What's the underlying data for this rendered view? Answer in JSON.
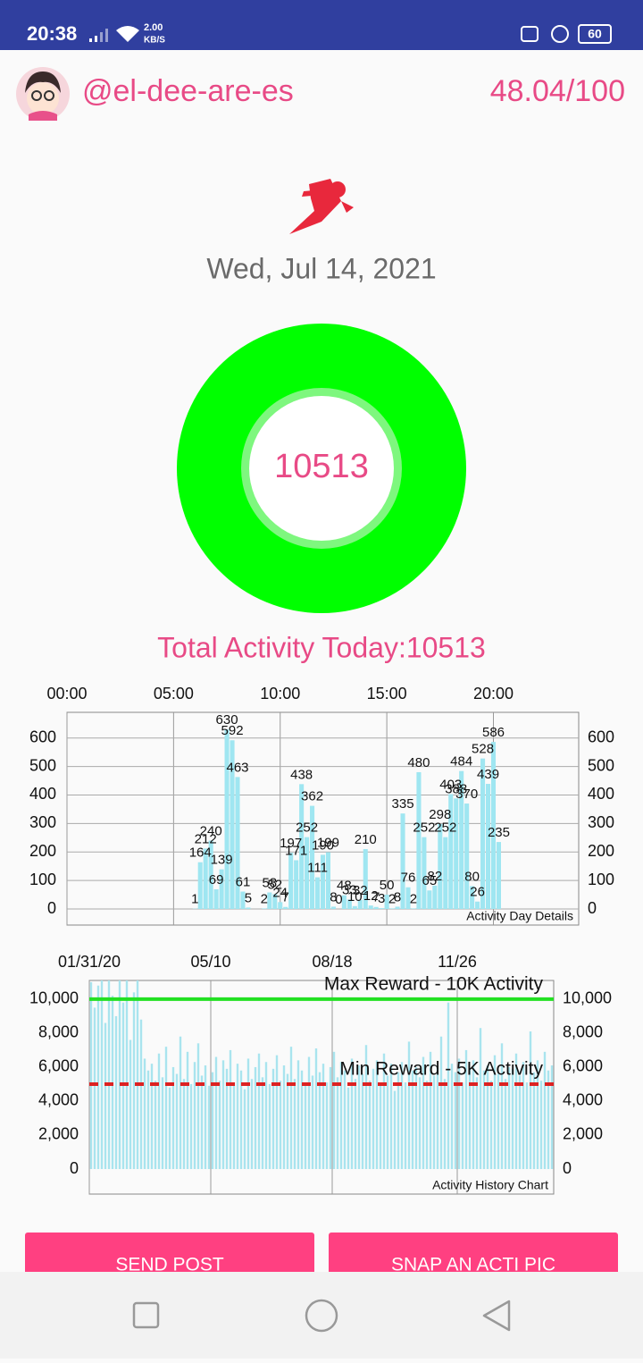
{
  "status_bar": {
    "time": "20:38",
    "speed": "2.00",
    "speed_unit": "KB/S",
    "battery": "60"
  },
  "header": {
    "username": "@el-dee-are-es",
    "score": "48.04/100"
  },
  "date": "Wed, Jul 14, 2021",
  "ring": {
    "value": "10513"
  },
  "total_text": "Total Activity Today:10513",
  "chart_data": [
    {
      "type": "bar",
      "description": "Activity Day Details",
      "color": "#9fe6f1",
      "grid": true,
      "x": [
        6.0,
        6.25,
        6.5,
        6.75,
        7.0,
        7.25,
        7.5,
        7.75,
        8.0,
        8.25,
        8.5,
        9.25,
        9.5,
        9.75,
        10.0,
        10.25,
        10.5,
        10.75,
        11.0,
        11.25,
        11.5,
        11.75,
        12.0,
        12.25,
        12.5,
        12.75,
        13.0,
        13.25,
        13.5,
        13.75,
        14.0,
        14.25,
        14.5,
        14.75,
        15.0,
        15.25,
        15.5,
        15.75,
        16.0,
        16.25,
        16.5,
        16.75,
        17.0,
        17.25,
        17.5,
        17.75,
        18.0,
        18.25,
        18.5,
        18.75,
        19.0,
        19.25,
        19.5,
        19.75,
        20.0,
        20.25
      ],
      "values": [
        1,
        164,
        212,
        240,
        69,
        139,
        630,
        592,
        463,
        61,
        5,
        2,
        58,
        52,
        24,
        7,
        197,
        171,
        438,
        252,
        362,
        111,
        190,
        199,
        8,
        0,
        48,
        33,
        10,
        32,
        210,
        12,
        7,
        3,
        50,
        2,
        8,
        335,
        76,
        2,
        480,
        252,
        65,
        82,
        298,
        252,
        403,
        388,
        484,
        370,
        80,
        26,
        528,
        439,
        586,
        235
      ],
      "xlim": [
        0,
        24
      ],
      "xticks": [
        {
          "value": 0,
          "label": "00:00"
        },
        {
          "value": 5,
          "label": "05:00"
        },
        {
          "value": 10,
          "label": "10:00"
        },
        {
          "value": 15,
          "label": "15:00"
        },
        {
          "value": 20,
          "label": "20:00"
        }
      ],
      "ylim": [
        0,
        690
      ],
      "yticks": [
        0,
        100,
        200,
        300,
        400,
        500,
        600
      ]
    },
    {
      "type": "bar",
      "description": "Activity History Chart",
      "color": "#a9e4ee",
      "grid": "x",
      "values": [
        11000,
        9500,
        10800,
        11100,
        8600,
        11100,
        10200,
        9000,
        11100,
        9800,
        11100,
        7600,
        10400,
        11100,
        8800,
        6500,
        5800,
        6200,
        5200,
        6800,
        5400,
        7200,
        4800,
        6000,
        5600,
        7800,
        5300,
        6900,
        5000,
        6300,
        7400,
        5500,
        6100,
        4900,
        5700,
        6600,
        5200,
        6400,
        5900,
        7000,
        5100,
        6200,
        5800,
        4700,
        6500,
        5300,
        6000,
        6800,
        5400,
        6300,
        5000,
        5900,
        6700,
        5200,
        6100,
        5600,
        7200,
        5300,
        6400,
        5800,
        4900,
        6600,
        5500,
        7100,
        5700,
        6200,
        5100,
        6000,
        6900,
        5400,
        6300,
        5800,
        4800,
        6500,
        5300,
        6100,
        5600,
        7300,
        5200,
        5900,
        6400,
        5000,
        6800,
        5500,
        6200,
        4600,
        5700,
        6300,
        5100,
        7500,
        5800,
        6000,
        5400,
        6600,
        5200,
        6900,
        5500,
        6100,
        7800,
        5300,
        9800,
        6200,
        5700,
        6500,
        5100,
        7000,
        5900,
        6400,
        5400,
        8300,
        5800,
        6100,
        5200,
        6700,
        5600,
        7400,
        5300,
        6000,
        5900,
        6800,
        5500,
        6300,
        5100,
        8100,
        5700,
        6400,
        5200,
        6900,
        5800,
        6100
      ],
      "xlim": [
        0,
        130
      ],
      "xticks": [
        {
          "value": 0,
          "label": "01/31/20"
        },
        {
          "value": 34,
          "label": "05/10"
        },
        {
          "value": 68,
          "label": "08/18"
        },
        {
          "value": 103,
          "label": "11/26"
        }
      ],
      "ylim": [
        0,
        11100
      ],
      "yticks": [
        0,
        {
          "value": 2000,
          "label": "2,000"
        },
        {
          "value": 4000,
          "label": "4,000"
        },
        {
          "value": 6000,
          "label": "6,000"
        },
        {
          "value": 8000,
          "label": "8,000"
        },
        {
          "value": 10000,
          "label": "10,000"
        }
      ],
      "limit_lines": [
        {
          "value": 10000,
          "label": "Max Reward - 10K Activity",
          "color": "#22e022",
          "dash": false
        },
        {
          "value": 5000,
          "label": "Min Reward - 5K Activity",
          "color": "#dd2222",
          "dash": true
        }
      ]
    }
  ],
  "buttons": [
    "SEND POST",
    "SNAP AN ACTI PIC"
  ]
}
